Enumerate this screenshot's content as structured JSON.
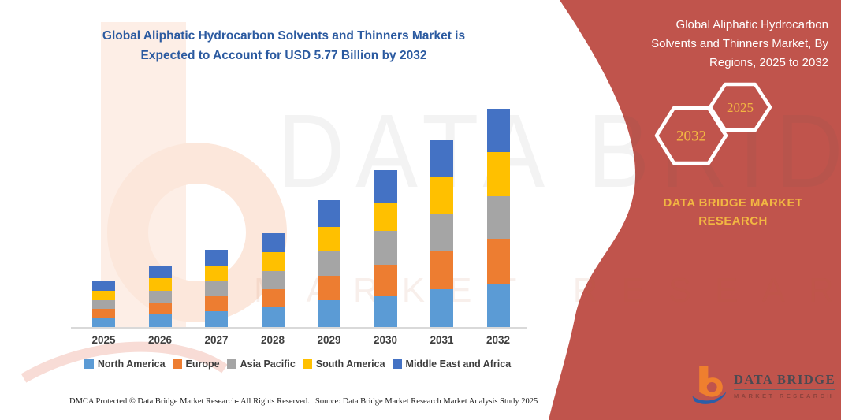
{
  "header": {
    "title": "Global Aliphatic Hydrocarbon Solvents and Thinners Market is Expected to Account for USD 5.77 Billion by 2032"
  },
  "right_panel": {
    "title": "Global Aliphatic Hydrocarbon Solvents and Thinners Market, By Regions, 2025 to 2032",
    "hexagons": [
      {
        "label": "2032"
      },
      {
        "label": "2025"
      }
    ],
    "brand_caption": "DATA BRIDGE MARKET RESEARCH",
    "logo": {
      "name": "DATA BRIDGE",
      "subtitle": "MARKET RESEARCH"
    },
    "colors": {
      "panel": "#c0544c",
      "accent_yellow": "#f2b742",
      "title_blue": "#2b5aa0"
    }
  },
  "watermark": {
    "line1": "DATA BRIDGE",
    "line2": "MARKET RESEARCH"
  },
  "chart_data": {
    "type": "bar",
    "stacked": true,
    "title": "Global Aliphatic Hydrocarbon Solvents and Thinners Market, By Regions, 2025 to 2032",
    "unit": "USD Billion",
    "values_estimated": true,
    "categories": [
      "2025",
      "2026",
      "2027",
      "2028",
      "2029",
      "2030",
      "2031",
      "2032"
    ],
    "series": [
      {
        "name": "North America",
        "color": "#5B9BD5",
        "values": [
          0.26,
          0.34,
          0.42,
          0.52,
          0.7,
          0.81,
          1.01,
          1.15
        ]
      },
      {
        "name": "Europe",
        "color": "#ED7D31",
        "values": [
          0.23,
          0.32,
          0.4,
          0.48,
          0.65,
          0.83,
          0.99,
          1.18
        ]
      },
      {
        "name": "Asia Pacific",
        "color": "#A5A5A5",
        "values": [
          0.23,
          0.31,
          0.4,
          0.48,
          0.64,
          0.89,
          1.01,
          1.13
        ]
      },
      {
        "name": "South America",
        "color": "#FFC000",
        "values": [
          0.26,
          0.33,
          0.41,
          0.51,
          0.64,
          0.76,
          0.95,
          1.16
        ]
      },
      {
        "name": "Middle East and Africa",
        "color": "#4472C4",
        "values": [
          0.24,
          0.32,
          0.41,
          0.49,
          0.7,
          0.86,
          0.98,
          1.15
        ]
      }
    ],
    "totals": [
      1.22,
      1.62,
      2.04,
      2.48,
      3.33,
      4.15,
      4.94,
      5.77
    ],
    "ylim": [
      0,
      6
    ],
    "grid": false,
    "legend_position": "bottom",
    "xlabel": "",
    "ylabel": ""
  },
  "footer": {
    "left": "DMCA Protected © Data Bridge Market Research-  All Rights Reserved.",
    "right": "Source: Data Bridge Market Research  Market Analysis Study 2025"
  }
}
